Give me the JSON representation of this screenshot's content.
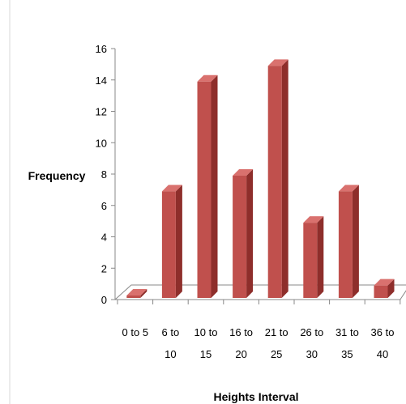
{
  "chart_data": {
    "type": "bar",
    "title": "",
    "xlabel": "Heights Interval",
    "ylabel": "Frequency",
    "categories": [
      [
        "0 to 5"
      ],
      [
        "6 to",
        "10"
      ],
      [
        "10 to",
        "15"
      ],
      [
        "16 to",
        "20"
      ],
      [
        "21 to",
        "25"
      ],
      [
        "26 to",
        "30"
      ],
      [
        "31 to",
        "35"
      ],
      [
        "36 to",
        "40"
      ]
    ],
    "values": [
      0,
      7,
      14,
      8,
      15,
      5,
      7,
      1
    ],
    "ylim": [
      0,
      16
    ],
    "yticks": [
      "0",
      "2",
      "4",
      "6",
      "8",
      "10",
      "12",
      "14",
      "16"
    ],
    "grid": false,
    "legend": "none",
    "style": "3d-column",
    "colors": {
      "bar_front": "#c0504d",
      "bar_side": "#8e2e2b",
      "bar_top": "#d9716e",
      "axis": "#888888",
      "floor": "#ffffff"
    }
  }
}
